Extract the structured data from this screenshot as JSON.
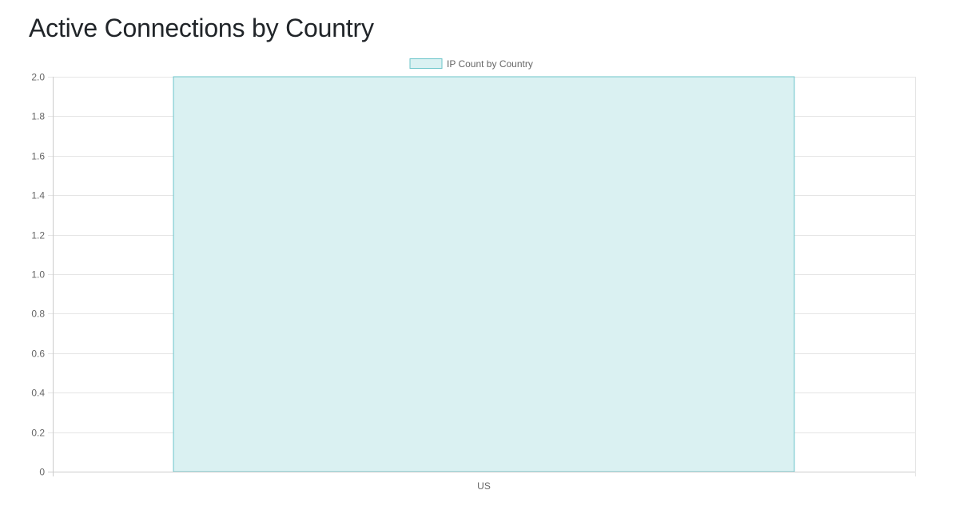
{
  "page": {
    "title": "Active Connections by Country"
  },
  "colors": {
    "bar_fill": "#daf1f2",
    "bar_border": "#6cc5ca",
    "grid": "#e5e5e5",
    "axis": "#cccccc",
    "tick_text": "#666666"
  },
  "chart_data": {
    "type": "bar",
    "categories": [
      "US"
    ],
    "series": [
      {
        "name": "IP Count by Country",
        "values": [
          2
        ]
      }
    ],
    "ylim": [
      0,
      2.0
    ],
    "yticks": [
      "0",
      "0.2",
      "0.4",
      "0.6",
      "0.8",
      "1.0",
      "1.2",
      "1.4",
      "1.6",
      "1.8",
      "2.0"
    ],
    "ytick_values": [
      0,
      0.2,
      0.4,
      0.6,
      0.8,
      1.0,
      1.2,
      1.4,
      1.6,
      1.8,
      2.0
    ],
    "grid": true,
    "legend": "top-center"
  }
}
